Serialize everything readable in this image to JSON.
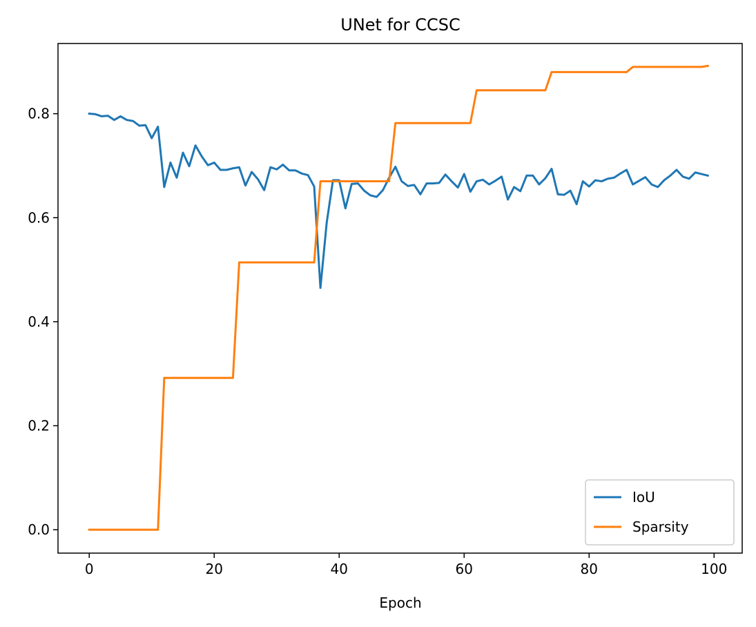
{
  "chart_data": {
    "type": "line",
    "title": "UNet for CCSC",
    "xlabel": "Epoch",
    "ylabel": "",
    "xlim": [
      -5,
      104.5
    ],
    "ylim": [
      -0.045,
      0.935
    ],
    "xticks": [
      0,
      20,
      40,
      60,
      80,
      100
    ],
    "xtick_labels": [
      "0",
      "20",
      "40",
      "60",
      "80",
      "100"
    ],
    "yticks": [
      0.0,
      0.2,
      0.4,
      0.6,
      0.8
    ],
    "ytick_labels": [
      "0.0",
      "0.2",
      "0.4",
      "0.6",
      "0.8"
    ],
    "grid": false,
    "legend_position": "bottom-right",
    "x": [
      0,
      1,
      2,
      3,
      4,
      5,
      6,
      7,
      8,
      9,
      10,
      11,
      12,
      13,
      14,
      15,
      16,
      17,
      18,
      19,
      20,
      21,
      22,
      23,
      24,
      25,
      26,
      27,
      28,
      29,
      30,
      31,
      32,
      33,
      34,
      35,
      36,
      37,
      38,
      39,
      40,
      41,
      42,
      43,
      44,
      45,
      46,
      47,
      48,
      49,
      50,
      51,
      52,
      53,
      54,
      55,
      56,
      57,
      58,
      59,
      60,
      61,
      62,
      63,
      64,
      65,
      66,
      67,
      68,
      69,
      70,
      71,
      72,
      73,
      74,
      75,
      76,
      77,
      78,
      79,
      80,
      81,
      82,
      83,
      84,
      85,
      86,
      87,
      88,
      89,
      90,
      91,
      92,
      93,
      94,
      95,
      96,
      97,
      98,
      99
    ],
    "series": [
      {
        "name": "IoU",
        "color": "#1f77b4",
        "values": [
          0.8,
          0.799,
          0.795,
          0.796,
          0.788,
          0.795,
          0.788,
          0.786,
          0.777,
          0.778,
          0.753,
          0.775,
          0.659,
          0.706,
          0.677,
          0.725,
          0.699,
          0.739,
          0.718,
          0.701,
          0.706,
          0.692,
          0.692,
          0.695,
          0.697,
          0.662,
          0.688,
          0.674,
          0.653,
          0.697,
          0.693,
          0.702,
          0.691,
          0.691,
          0.685,
          0.682,
          0.66,
          0.465,
          0.59,
          0.672,
          0.672,
          0.618,
          0.665,
          0.666,
          0.652,
          0.643,
          0.64,
          0.653,
          0.677,
          0.698,
          0.67,
          0.661,
          0.663,
          0.645,
          0.666,
          0.666,
          0.667,
          0.683,
          0.67,
          0.658,
          0.684,
          0.65,
          0.67,
          0.673,
          0.664,
          0.671,
          0.679,
          0.635,
          0.659,
          0.651,
          0.681,
          0.681,
          0.664,
          0.676,
          0.694,
          0.645,
          0.644,
          0.652,
          0.626,
          0.67,
          0.66,
          0.672,
          0.67,
          0.675,
          0.677,
          0.685,
          0.692,
          0.664,
          0.671,
          0.678,
          0.664,
          0.659,
          0.672,
          0.681,
          0.692,
          0.679,
          0.675,
          0.687,
          0.684,
          0.681
        ]
      },
      {
        "name": "Sparsity",
        "color": "#ff7f0e",
        "values": [
          0.0,
          0.0,
          0.0,
          0.0,
          0.0,
          0.0,
          0.0,
          0.0,
          0.0,
          0.0,
          0.0,
          0.0,
          0.292,
          0.292,
          0.292,
          0.292,
          0.292,
          0.292,
          0.292,
          0.292,
          0.292,
          0.292,
          0.292,
          0.292,
          0.514,
          0.514,
          0.514,
          0.514,
          0.514,
          0.514,
          0.514,
          0.514,
          0.514,
          0.514,
          0.514,
          0.514,
          0.514,
          0.67,
          0.67,
          0.67,
          0.67,
          0.67,
          0.67,
          0.67,
          0.67,
          0.67,
          0.67,
          0.67,
          0.67,
          0.782,
          0.782,
          0.782,
          0.782,
          0.782,
          0.782,
          0.782,
          0.782,
          0.782,
          0.782,
          0.782,
          0.782,
          0.782,
          0.845,
          0.845,
          0.845,
          0.845,
          0.845,
          0.845,
          0.845,
          0.845,
          0.845,
          0.845,
          0.845,
          0.845,
          0.88,
          0.88,
          0.88,
          0.88,
          0.88,
          0.88,
          0.88,
          0.88,
          0.88,
          0.88,
          0.88,
          0.88,
          0.88,
          0.89,
          0.89,
          0.89,
          0.89,
          0.89,
          0.89,
          0.89,
          0.89,
          0.89,
          0.89,
          0.89,
          0.89,
          0.892
        ]
      }
    ]
  }
}
